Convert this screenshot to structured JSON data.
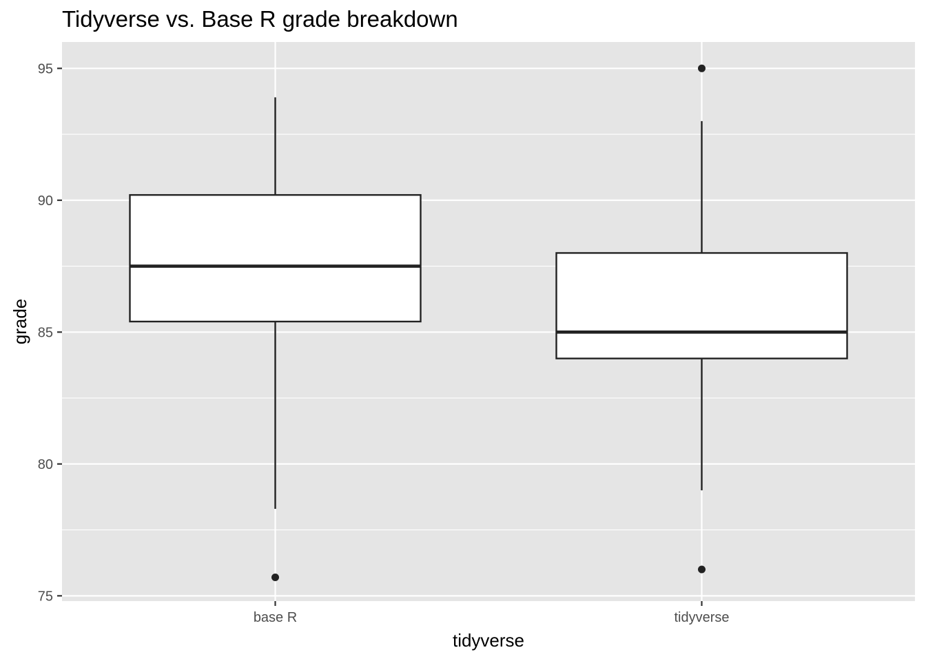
{
  "chart_data": {
    "type": "boxplot",
    "title": "Tidyverse vs. Base R grade breakdown",
    "xlabel": "tidyverse",
    "ylabel": "grade",
    "categories": [
      "base R",
      "tidyverse"
    ],
    "boxes": [
      {
        "category": "base R",
        "whisker_low": 78.3,
        "q1": 85.4,
        "median": 87.5,
        "q3": 90.2,
        "whisker_high": 93.9,
        "outliers": [
          75.7
        ]
      },
      {
        "category": "tidyverse",
        "whisker_low": 79.0,
        "q1": 84.0,
        "median": 85.0,
        "q3": 88.0,
        "whisker_high": 93.0,
        "outliers": [
          95.0,
          76.0
        ]
      }
    ],
    "ylim": [
      74.8,
      96.0
    ],
    "y_ticks": [
      75,
      80,
      85,
      90,
      95
    ],
    "y_minor_ticks": [
      77.5,
      82.5,
      87.5,
      92.5
    ],
    "grid": true,
    "colors": {
      "panel_background": "#e5e5e5",
      "grid": "#ffffff",
      "box_fill": "#ffffff",
      "box_stroke": "#222222",
      "tick_label": "#4d4d4d",
      "tick_mark": "#333333"
    }
  }
}
